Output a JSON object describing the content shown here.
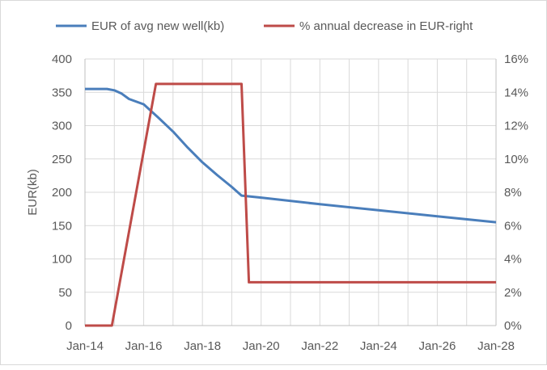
{
  "chart_data": {
    "type": "line",
    "title": "",
    "xlabel": "",
    "ylabel": "EUR(kb)",
    "y2label": "",
    "xlim": [
      "2014-01",
      "2028-01"
    ],
    "ylim": [
      0,
      400
    ],
    "y2lim": [
      0,
      0.16
    ],
    "x_ticks": [
      "Jan-14",
      "Jan-16",
      "Jan-18",
      "Jan-20",
      "Jan-22",
      "Jan-24",
      "Jan-26",
      "Jan-28"
    ],
    "y_ticks": [
      "0",
      "50",
      "100",
      "150",
      "200",
      "250",
      "300",
      "350",
      "400"
    ],
    "y2_ticks": [
      "0%",
      "2%",
      "4%",
      "6%",
      "8%",
      "10%",
      "12%",
      "14%",
      "16%"
    ],
    "grid": true,
    "legend_position": "top",
    "series": [
      {
        "name": "EUR of avg new well(kb)",
        "axis": "left",
        "color": "#4a7ebb",
        "points": [
          [
            "2014-01",
            355
          ],
          [
            "2014-10",
            355
          ],
          [
            "2015-01",
            353
          ],
          [
            "2015-04",
            348
          ],
          [
            "2015-07",
            340
          ],
          [
            "2016-01",
            332
          ],
          [
            "2016-07",
            312
          ],
          [
            "2017-01",
            291
          ],
          [
            "2017-07",
            267
          ],
          [
            "2018-01",
            245
          ],
          [
            "2018-07",
            226
          ],
          [
            "2019-01",
            208
          ],
          [
            "2019-05",
            195
          ],
          [
            "2020-01",
            192
          ],
          [
            "2022-01",
            182
          ],
          [
            "2024-01",
            173
          ],
          [
            "2026-01",
            164
          ],
          [
            "2028-01",
            155
          ]
        ]
      },
      {
        "name": "% annual decrease in EUR-right",
        "axis": "right",
        "color": "#be4b48",
        "points": [
          [
            "2014-01",
            0
          ],
          [
            "2014-12",
            0
          ],
          [
            "2016-06",
            0.145
          ],
          [
            "2019-05",
            0.145
          ],
          [
            "2019-08",
            0.026
          ],
          [
            "2028-01",
            0.026
          ]
        ]
      }
    ]
  }
}
